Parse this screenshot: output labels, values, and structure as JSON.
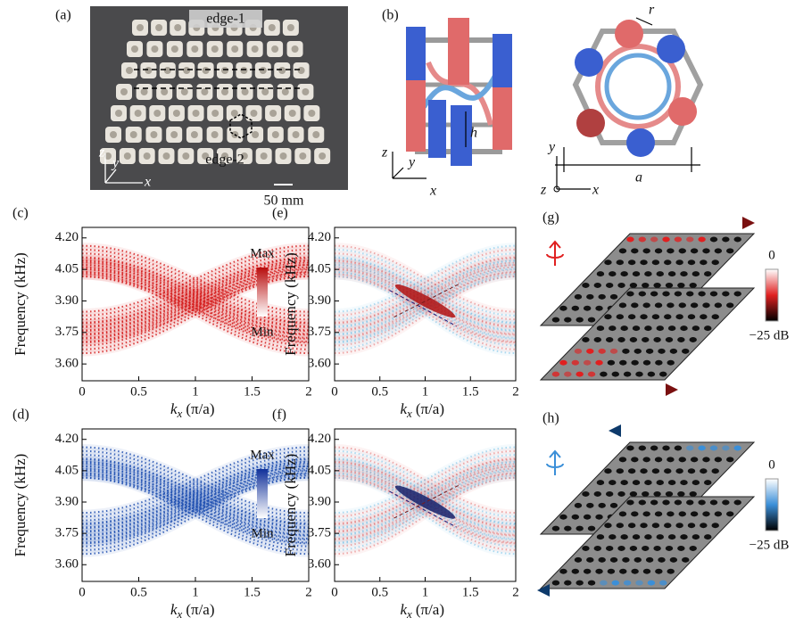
{
  "panels": {
    "a": {
      "label": "(a)",
      "edge_1": "edge-1",
      "edge_2": "edge-2",
      "scale": "50 mm",
      "axes": [
        "z",
        "y",
        "x"
      ]
    },
    "b": {
      "label": "(b)",
      "r": "r",
      "h": "h",
      "a": "a",
      "axes_left": [
        "z",
        "y",
        "x"
      ],
      "axes_right": [
        "y",
        "z",
        "x"
      ]
    },
    "g": {
      "label": "(g)",
      "color": "#e02020",
      "colorbar": {
        "max": "0",
        "min": "−25 dB"
      }
    },
    "h": {
      "label": "(h)",
      "color": "#3b8fd8",
      "colorbar": {
        "max": "0",
        "min": "−25 dB"
      }
    }
  },
  "chart_data": [
    {
      "type": "heatmap",
      "label": "(c)",
      "ylabel": "Frequency (kHz)",
      "xlabel": {
        "symbol": "k",
        "sub": "x",
        "unit": "(π/a)"
      },
      "xlim": [
        0,
        2
      ],
      "ylim": [
        3.52,
        4.25
      ],
      "xticks": [
        0,
        0.5,
        1,
        1.5,
        2
      ],
      "yticks": [
        {
          "value": 3.6,
          "label": "3.60"
        },
        {
          "value": 3.75,
          "label": "3.75"
        },
        {
          "value": 3.9,
          "label": "3.90"
        },
        {
          "value": 4.05,
          "label": "4.05"
        },
        {
          "value": 4.2,
          "label": "4.20"
        }
      ],
      "colors": [
        "#d41c1c"
      ],
      "colorbar": {
        "max": "Max",
        "min": "Min"
      }
    },
    {
      "type": "heatmap",
      "label": "(e)",
      "ylabel": "Frequency (kHz)",
      "xlabel": {
        "symbol": "k",
        "sub": "x",
        "unit": "(π/a)"
      },
      "xlim": [
        0,
        2
      ],
      "ylim": [
        3.52,
        4.25
      ],
      "xticks": [
        0,
        0.5,
        1,
        1.5,
        2
      ],
      "yticks": [
        {
          "value": 3.6,
          "label": "3.60"
        },
        {
          "value": 3.75,
          "label": "3.75"
        },
        {
          "value": 3.9,
          "label": "3.90"
        },
        {
          "value": 4.05,
          "label": "4.05"
        },
        {
          "value": 4.2,
          "label": "4.20"
        }
      ],
      "colors": [
        "#e46a6a",
        "#6fc0e8",
        "#b01010"
      ]
    },
    {
      "type": "heatmap",
      "label": "(d)",
      "ylabel": "Frequency (kHz)",
      "xlabel": {
        "symbol": "k",
        "sub": "x",
        "unit": "(π/a)"
      },
      "xlim": [
        0,
        2
      ],
      "ylim": [
        3.52,
        4.25
      ],
      "xticks": [
        0,
        0.5,
        1,
        1.5,
        2
      ],
      "yticks": [
        {
          "value": 3.6,
          "label": "3.60"
        },
        {
          "value": 3.75,
          "label": "3.75"
        },
        {
          "value": 3.9,
          "label": "3.90"
        },
        {
          "value": 4.05,
          "label": "4.05"
        },
        {
          "value": 4.2,
          "label": "4.20"
        }
      ],
      "colors": [
        "#1f4fb0"
      ],
      "colorbar": {
        "max": "Max",
        "min": "Min"
      }
    },
    {
      "type": "heatmap",
      "label": "(f)",
      "ylabel": "Frequency (kHz)",
      "xlabel": {
        "symbol": "k",
        "sub": "x",
        "unit": "(π/a)"
      },
      "xlim": [
        0,
        2
      ],
      "ylim": [
        3.52,
        4.25
      ],
      "xticks": [
        0,
        0.5,
        1,
        1.5,
        2
      ],
      "yticks": [
        {
          "value": 3.6,
          "label": "3.60"
        },
        {
          "value": 3.75,
          "label": "3.75"
        },
        {
          "value": 3.9,
          "label": "3.90"
        },
        {
          "value": 4.05,
          "label": "4.05"
        },
        {
          "value": 4.2,
          "label": "4.20"
        }
      ],
      "colors": [
        "#e46a6a",
        "#6fc0e8",
        "#15206a"
      ]
    }
  ]
}
